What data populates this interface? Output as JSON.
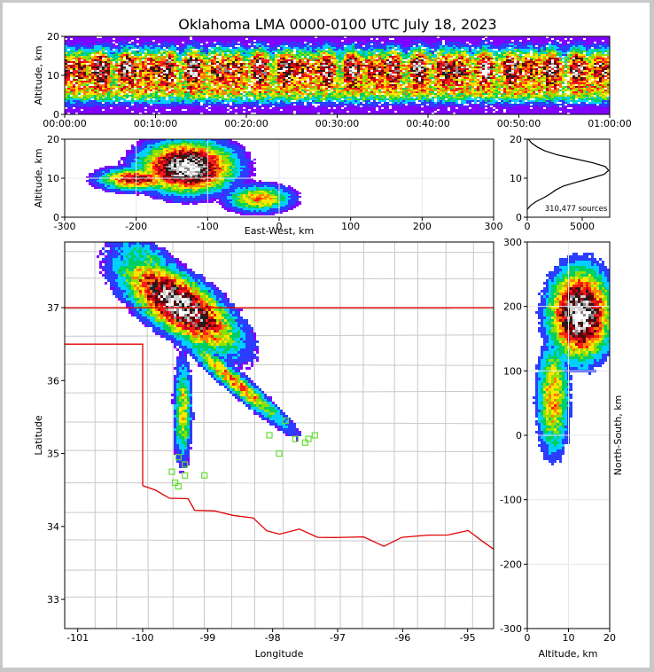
{
  "title": "Oklahoma LMA 0000-0100 UTC July 18, 2023",
  "chart_data": [
    {
      "type": "heatmap",
      "panel": "altitude-vs-time",
      "ylabel": "Altitude, km",
      "ylim": [
        0,
        20
      ],
      "yticks": [
        "0",
        "10",
        "20"
      ],
      "xticks": [
        "00:00:00",
        "00:10:00",
        "00:20:00",
        "00:30:00",
        "00:40:00",
        "00:50:00",
        "01:00:00"
      ]
    },
    {
      "type": "heatmap",
      "panel": "altitude-vs-east-west",
      "xlabel": "East-West, km",
      "ylabel": "Altitude, km",
      "xlim": [
        -300,
        300
      ],
      "ylim": [
        0,
        20
      ],
      "xticks": [
        "-300",
        "-200",
        "-100",
        "0",
        "100",
        "200",
        "300"
      ],
      "yticks": [
        "0",
        "10",
        "20"
      ]
    },
    {
      "type": "line",
      "panel": "altitude-histogram",
      "annotation": "310,477 sources",
      "xlim": [
        0,
        7500
      ],
      "ylim": [
        0,
        20
      ],
      "xticks": [
        "0",
        "5000"
      ],
      "yticks": [
        "0",
        "10",
        "20"
      ],
      "series": [
        {
          "x": [
            0,
            300,
            800,
            1500,
            2100,
            2600,
            3300,
            4500,
            5800,
            7000,
            7400,
            7100,
            5900,
            4300,
            2700,
            1600,
            900,
            400,
            100
          ],
          "y": [
            2,
            3,
            4,
            5,
            6,
            7,
            8,
            9,
            10,
            11,
            12,
            13,
            14,
            15,
            16,
            17,
            18,
            19,
            20
          ]
        }
      ]
    },
    {
      "type": "heatmap",
      "panel": "plan-view-map",
      "xlabel": "Longitude",
      "ylabel": "Latitude",
      "xlim": [
        -101.2,
        -94.6
      ],
      "ylim": [
        32.6,
        37.9
      ],
      "xticks": [
        "-101",
        "-100",
        "-99",
        "-98",
        "-97",
        "-96",
        "-95"
      ],
      "yticks": [
        "33",
        "34",
        "35",
        "36",
        "37"
      ],
      "stations": [
        [
          -99.45,
          34.95
        ],
        [
          -99.35,
          34.85
        ],
        [
          -99.55,
          34.75
        ],
        [
          -99.35,
          34.7
        ],
        [
          -99.05,
          34.7
        ],
        [
          -99.5,
          34.6
        ],
        [
          -99.45,
          34.55
        ],
        [
          -98.05,
          35.25
        ],
        [
          -97.9,
          35.0
        ],
        [
          -97.8,
          35.45
        ],
        [
          -97.65,
          35.2
        ],
        [
          -97.5,
          35.15
        ],
        [
          -97.45,
          35.2
        ],
        [
          -97.35,
          35.25
        ]
      ]
    },
    {
      "type": "heatmap",
      "panel": "north-south-vs-altitude",
      "xlabel": "Altitude, km",
      "ylabel": "North-South, km",
      "xlim": [
        0,
        20
      ],
      "ylim": [
        -300,
        300
      ],
      "xticks": [
        "0",
        "10",
        "20"
      ],
      "yticks": [
        "-300",
        "-200",
        "-100",
        "0",
        "100",
        "200",
        "300"
      ]
    }
  ],
  "colors": {
    "density_scale": [
      "#7f00ff",
      "#2b3dff",
      "#00d0ff",
      "#00d060",
      "#8fe000",
      "#ffe600",
      "#ff8000",
      "#ff1a1a",
      "#c00018",
      "#600000",
      "#202020",
      "#8a8a8a",
      "#d0d0d0",
      "#ffffff"
    ],
    "state_border": "#e00000",
    "county_lines": "#c8c8c8",
    "station_marker": "#66dd33"
  }
}
